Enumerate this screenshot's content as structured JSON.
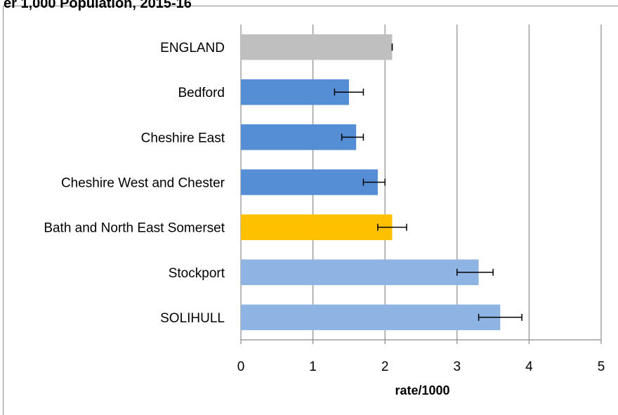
{
  "page": {
    "cut_title": "er 1,000 Population, 2015-16"
  },
  "chart_data": {
    "type": "bar",
    "orientation": "horizontal",
    "title": "",
    "xlabel": "rate/1000",
    "ylabel": "",
    "xlim": [
      0,
      5
    ],
    "x_ticks": [
      0,
      1,
      2,
      3,
      4,
      5
    ],
    "grid": true,
    "legend": "none",
    "categories": [
      "ENGLAND",
      "Bedford",
      "Cheshire East",
      "Cheshire West and Chester",
      "Bath and North East Somerset",
      "Stockport",
      "SOLIHULL"
    ],
    "values": [
      2.1,
      1.5,
      1.6,
      1.9,
      2.1,
      3.3,
      3.6
    ],
    "error_low": [
      2.1,
      1.3,
      1.4,
      1.7,
      1.9,
      3.0,
      3.3
    ],
    "error_high": [
      2.1,
      1.7,
      1.7,
      2.0,
      2.3,
      3.5,
      3.9
    ],
    "colors": [
      "#bfbfbf",
      "#558ed5",
      "#558ed5",
      "#558ed5",
      "#ffc000",
      "#8eb4e3",
      "#8eb4e3"
    ],
    "grid_color": "#8c8c8c",
    "axis_color": "#8c8c8c"
  }
}
